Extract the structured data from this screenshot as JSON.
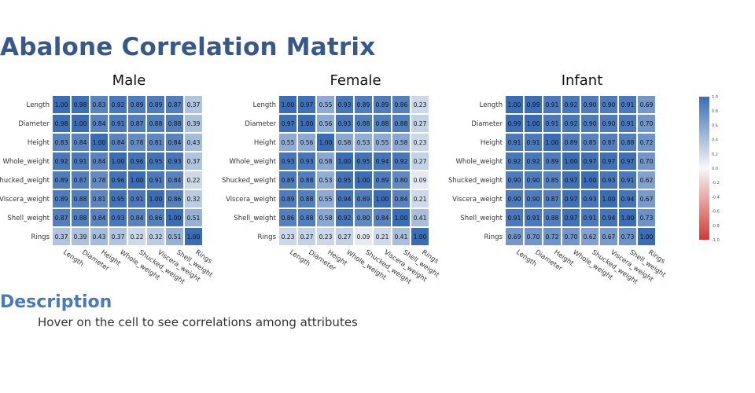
{
  "page": {
    "title": "Abalone Correlation Matrix",
    "description_title": "Description",
    "description_text": "Hover on the cell to see correlations among attributes"
  },
  "colors": {
    "title": "#37598a",
    "high": "#3a6db5",
    "mid": "#f7f7f7",
    "low": "#d13a35",
    "cell_text_dark": "#111111",
    "cell_text_light": "#ffffff"
  },
  "chart_data": [
    {
      "type": "heatmap",
      "title": "Male",
      "labels": [
        "Length",
        "Diameter",
        "Height",
        "Whole_weight",
        "Shucked_weight",
        "Viscera_weight",
        "Shell_weight",
        "Rings"
      ],
      "values": [
        [
          1.0,
          0.98,
          0.83,
          0.92,
          0.89,
          0.89,
          0.87,
          0.37
        ],
        [
          0.98,
          1.0,
          0.84,
          0.91,
          0.87,
          0.88,
          0.88,
          0.39
        ],
        [
          0.83,
          0.84,
          1.0,
          0.84,
          0.78,
          0.81,
          0.84,
          0.43
        ],
        [
          0.92,
          0.91,
          0.84,
          1.0,
          0.96,
          0.95,
          0.93,
          0.37
        ],
        [
          0.89,
          0.87,
          0.78,
          0.96,
          1.0,
          0.91,
          0.84,
          0.22
        ],
        [
          0.89,
          0.88,
          0.81,
          0.95,
          0.91,
          1.0,
          0.86,
          0.32
        ],
        [
          0.87,
          0.88,
          0.84,
          0.93,
          0.84,
          0.86,
          1.0,
          0.51
        ],
        [
          0.37,
          0.39,
          0.43,
          0.37,
          0.22,
          0.32,
          0.51,
          1.0
        ]
      ]
    },
    {
      "type": "heatmap",
      "title": "Female",
      "labels": [
        "Length",
        "Diameter",
        "Height",
        "Whole_weight",
        "Shucked_weight",
        "Viscera_weight",
        "Shell_weight",
        "Rings"
      ],
      "values": [
        [
          1.0,
          0.97,
          0.55,
          0.93,
          0.89,
          0.89,
          0.86,
          0.23
        ],
        [
          0.97,
          1.0,
          0.56,
          0.93,
          0.88,
          0.88,
          0.88,
          0.27
        ],
        [
          0.55,
          0.56,
          1.0,
          0.58,
          0.53,
          0.55,
          0.58,
          0.23
        ],
        [
          0.93,
          0.93,
          0.58,
          1.0,
          0.95,
          0.94,
          0.92,
          0.27
        ],
        [
          0.89,
          0.88,
          0.53,
          0.95,
          1.0,
          0.89,
          0.8,
          0.09
        ],
        [
          0.89,
          0.88,
          0.55,
          0.94,
          0.89,
          1.0,
          0.84,
          0.21
        ],
        [
          0.86,
          0.88,
          0.58,
          0.92,
          0.8,
          0.84,
          1.0,
          0.41
        ],
        [
          0.23,
          0.27,
          0.23,
          0.27,
          0.09,
          0.21,
          0.41,
          1.0
        ]
      ]
    },
    {
      "type": "heatmap",
      "title": "Infant",
      "labels": [
        "Length",
        "Diameter",
        "Height",
        "Whole_weight",
        "Shucked_weight",
        "Viscera_weight",
        "Shell_weight",
        "Rings"
      ],
      "values": [
        [
          1.0,
          0.99,
          0.91,
          0.92,
          0.9,
          0.9,
          0.91,
          0.69
        ],
        [
          0.99,
          1.0,
          0.91,
          0.92,
          0.9,
          0.9,
          0.91,
          0.7
        ],
        [
          0.91,
          0.91,
          1.0,
          0.89,
          0.85,
          0.87,
          0.88,
          0.72
        ],
        [
          0.92,
          0.92,
          0.89,
          1.0,
          0.97,
          0.97,
          0.97,
          0.7
        ],
        [
          0.9,
          0.9,
          0.85,
          0.97,
          1.0,
          0.93,
          0.91,
          0.62
        ],
        [
          0.9,
          0.9,
          0.87,
          0.97,
          0.93,
          1.0,
          0.94,
          0.67
        ],
        [
          0.91,
          0.91,
          0.88,
          0.97,
          0.91,
          0.94,
          1.0,
          0.73
        ],
        [
          0.69,
          0.7,
          0.72,
          0.7,
          0.62,
          0.67,
          0.73,
          1.0
        ]
      ]
    },
    {
      "type": "colorbar",
      "range": [
        -1.0,
        1.0
      ],
      "ticks": [
        "1.0",
        "0.8",
        "0.6",
        "0.4",
        "0.2",
        "0.0",
        "-0.2",
        "-0.4",
        "-0.6",
        "-0.8",
        "-1.0"
      ]
    }
  ]
}
